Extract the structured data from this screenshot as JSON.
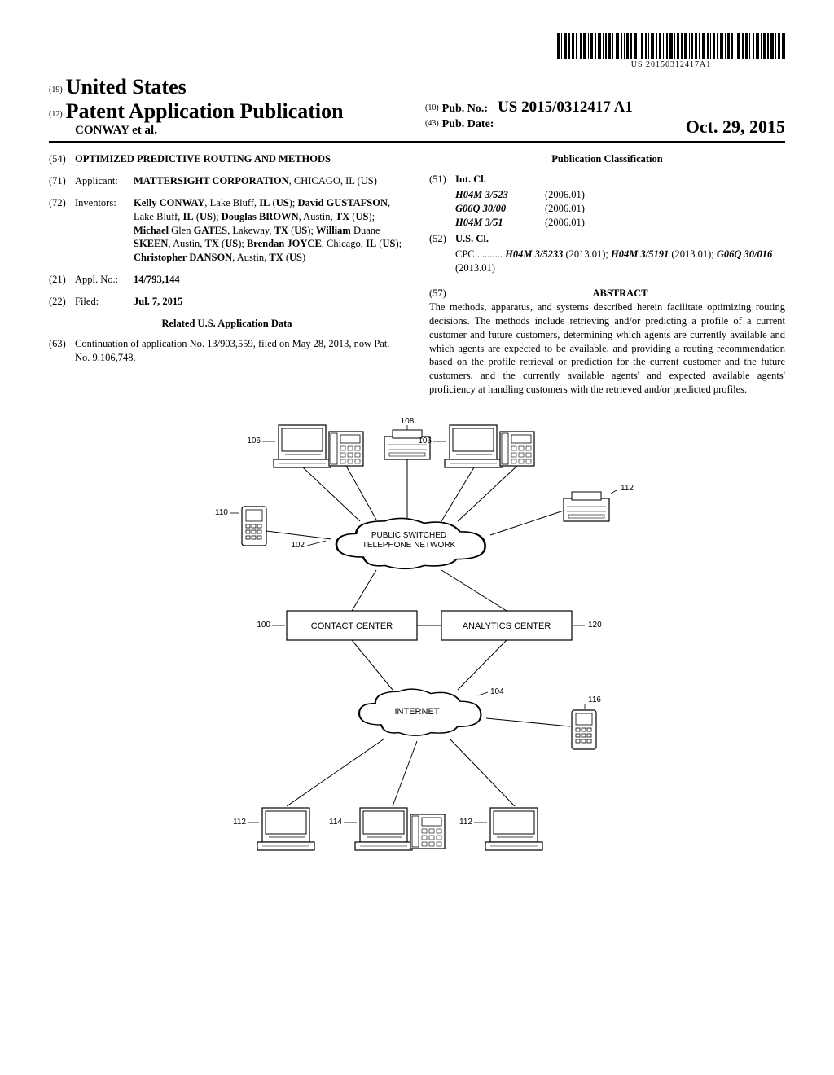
{
  "barcode": {
    "text": "US 20150312417A1"
  },
  "header": {
    "code19": "(19)",
    "country": "United States",
    "code12": "(12)",
    "pub_type": "Patent Application Publication",
    "author_line": "CONWAY et al.",
    "code10": "(10)",
    "pub_no_label": "Pub. No.:",
    "pub_no": "US 2015/0312417 A1",
    "code43": "(43)",
    "pub_date_label": "Pub. Date:",
    "pub_date": "Oct. 29, 2015"
  },
  "left": {
    "code54": "(54)",
    "title": "OPTIMIZED PREDICTIVE ROUTING AND METHODS",
    "code71": "(71)",
    "applicant_label": "Applicant:",
    "applicant": "MATTERSIGHT CORPORATION",
    "applicant_loc": "CHICAGO, IL (US)",
    "code72": "(72)",
    "inventors_label": "Inventors:",
    "inventors": "Kelly CONWAY, Lake Bluff, IL (US); David GUSTAFSON, Lake Bluff, IL (US); Douglas BROWN, Austin, TX (US); Michael Glen GATES, Lakeway, TX (US); William Duane SKEEN, Austin, TX (US); Brendan JOYCE, Chicago, IL (US); Christopher DANSON, Austin, TX (US)",
    "code21": "(21)",
    "appl_label": "Appl. No.:",
    "appl_no": "14/793,144",
    "code22": "(22)",
    "filed_label": "Filed:",
    "filed": "Jul. 7, 2015",
    "related_heading": "Related U.S. Application Data",
    "code63": "(63)",
    "continuation": "Continuation of application No. 13/903,559, filed on May 28, 2013, now Pat. No. 9,106,748."
  },
  "right": {
    "classification_heading": "Publication Classification",
    "code51": "(51)",
    "intcl_label": "Int. Cl.",
    "intcl": [
      {
        "code": "H04M 3/523",
        "year": "(2006.01)"
      },
      {
        "code": "G06Q 30/00",
        "year": "(2006.01)"
      },
      {
        "code": "H04M 3/51",
        "year": "(2006.01)"
      }
    ],
    "code52": "(52)",
    "uscl_label": "U.S. Cl.",
    "cpc_label": "CPC ..........",
    "cpc": "H04M 3/5233 (2013.01); H04M 3/5191 (2013.01); G06Q 30/016 (2013.01)",
    "code57": "(57)",
    "abstract_heading": "ABSTRACT",
    "abstract": "The methods, apparatus, and systems described herein facilitate optimizing routing decisions. The methods include retrieving and/or predicting a profile of a current customer and future customers, determining which agents are currently available and which agents are expected to be available, and providing a routing recommendation based on the profile retrieval or prediction for the current customer and the future customers, and the currently available agents' and expected available agents' proficiency at handling customers with the retrieved and/or predicted profiles."
  },
  "figure": {
    "labels": {
      "l108": "108",
      "l106a": "106",
      "l106b": "106",
      "l110": "110",
      "l112a": "112",
      "l112b": "112",
      "l112c": "112",
      "l114": "114",
      "l116": "116",
      "l102": "102",
      "l100": "100",
      "l120": "120",
      "l104": "104",
      "pstn": "PUBLIC SWITCHED TELEPHONE NETWORK",
      "contact": "CONTACT CENTER",
      "analytics": "ANALYTICS CENTER",
      "internet": "INTERNET"
    },
    "style": {
      "stroke": "#000000",
      "stroke_width": 1.2,
      "fill": "#ffffff",
      "font_family": "Arial, sans-serif",
      "font_size": 11,
      "label_font_size": 10
    }
  }
}
